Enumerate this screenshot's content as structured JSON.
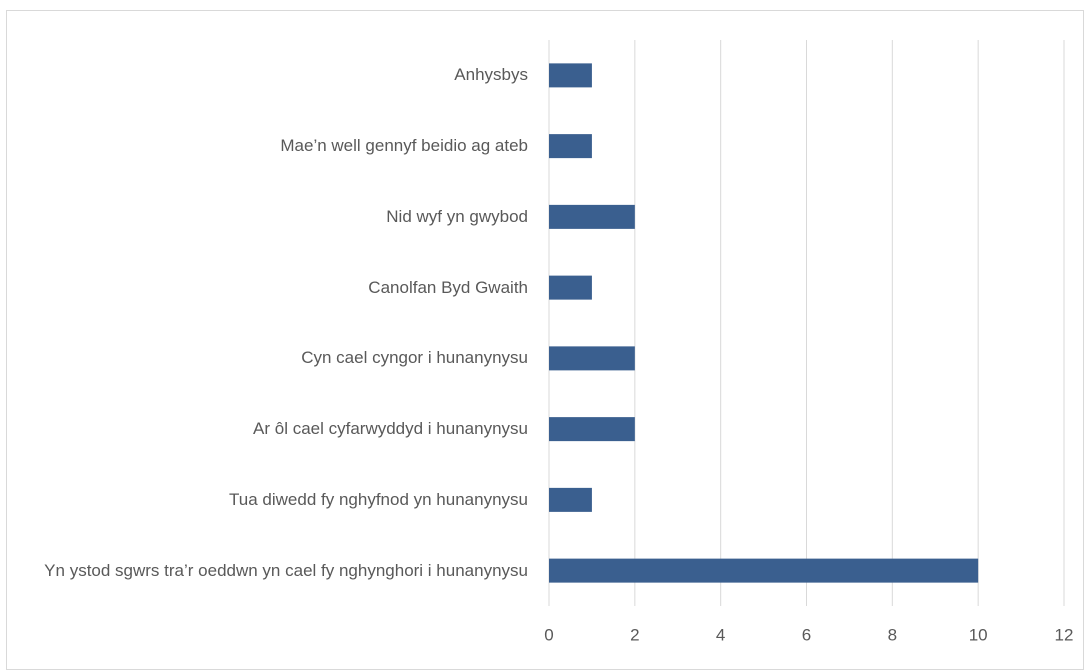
{
  "chart_data": {
    "type": "bar",
    "orientation": "horizontal",
    "categories": [
      "Anhysbys",
      "Mae’n well gennyf beidio ag ateb",
      "Nid wyf yn gwybod",
      "Canolfan Byd Gwaith",
      "Cyn cael cyngor i hunanynysu",
      "Ar ôl cael cyfarwyddyd i hunanynysu",
      "Tua diwedd fy nghyfnod yn hunanynysu",
      "Yn ystod sgwrs tra’r oeddwn yn cael fy nghynghori i hunanynysu"
    ],
    "values": [
      1,
      1,
      2,
      1,
      2,
      2,
      1,
      10
    ],
    "color": "#3a5f8f",
    "xlim": [
      0,
      12
    ],
    "xticks": [
      0,
      2,
      4,
      6,
      8,
      10,
      12
    ],
    "grid": true
  }
}
